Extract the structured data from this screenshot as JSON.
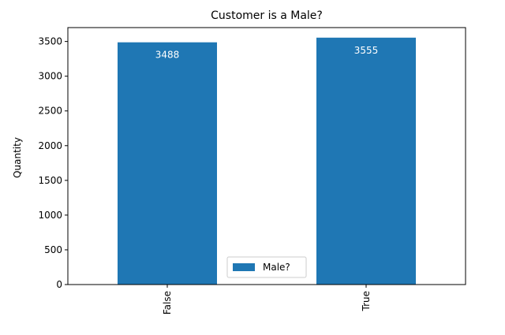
{
  "chart_data": {
    "type": "bar",
    "title": "Customer is a Male?",
    "xlabel": "",
    "ylabel": "Quantity",
    "categories": [
      "False",
      "True"
    ],
    "series": [
      {
        "name": "Male?",
        "values": [
          3488,
          3555
        ],
        "data_labels": [
          "3488",
          "3555"
        ]
      }
    ],
    "ylim": [
      0,
      3700
    ],
    "yticks": [
      0,
      500,
      1000,
      1500,
      2000,
      2500,
      3000,
      3500
    ],
    "ytick_labels": [
      "0",
      "500",
      "1000",
      "1500",
      "2000",
      "2500",
      "3000",
      "3500"
    ],
    "grid": false,
    "legend_position": "bottom-center",
    "colors": {
      "bar": "#1f77b4",
      "axis": "#000000",
      "data_label": "#ffffff"
    }
  }
}
